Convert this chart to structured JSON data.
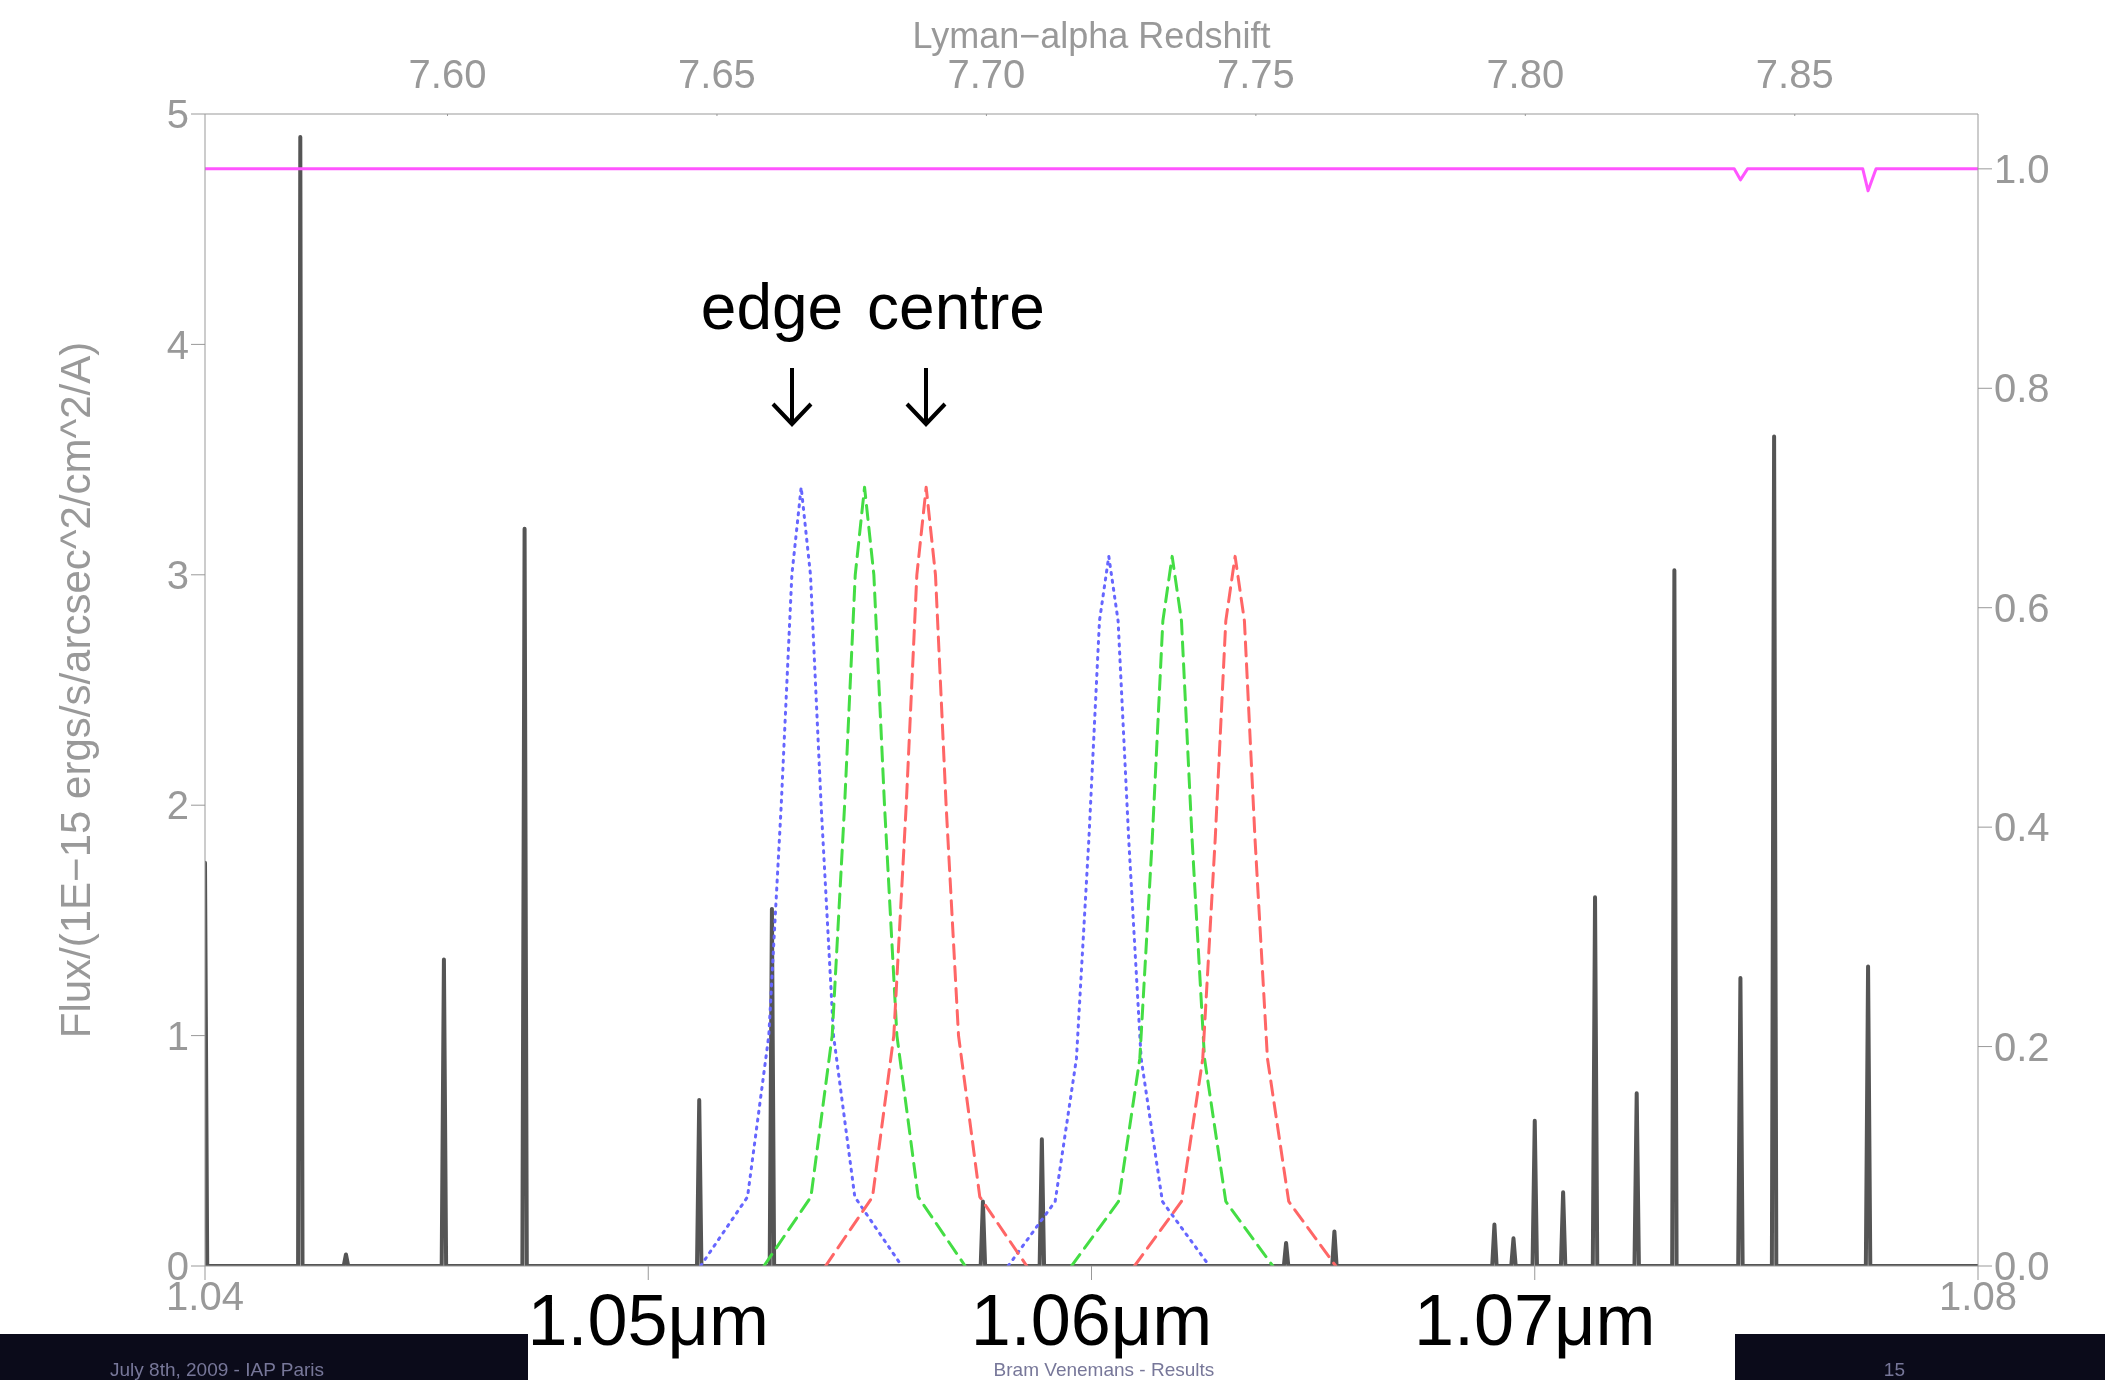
{
  "chart_data": {
    "type": "line",
    "xlabel": null,
    "x2label": "Lyman−alpha Redshift",
    "ylabel": "Flux/(1E−15 ergs/s/arcsec^2/cm^2/A)",
    "xlim": [
      1.04,
      1.08
    ],
    "xticks": [
      1.04,
      {
        "value": 1.05,
        "label": null
      },
      {
        "value": 1.06,
        "label": null
      },
      {
        "value": 1.07,
        "label": null
      },
      1.08
    ],
    "x2lim": [
      7.555,
      7.884
    ],
    "x2ticks": [
      {
        "value": 7.6,
        "label": "7.60"
      },
      {
        "value": 7.65,
        "label": "7.65"
      },
      {
        "value": 7.7,
        "label": "7.70"
      },
      {
        "value": 7.75,
        "label": "7.75"
      },
      {
        "value": 7.8,
        "label": "7.80"
      },
      {
        "value": 7.85,
        "label": "7.85"
      }
    ],
    "ylim": [
      0,
      5
    ],
    "yticks": [
      0,
      1,
      2,
      3,
      4,
      5
    ],
    "y2lim": [
      0,
      1.05
    ],
    "y2ticks": [
      {
        "value": 0,
        "label": "0.0"
      },
      {
        "value": 0.2,
        "label": "0.2"
      },
      {
        "value": 0.4,
        "label": "0.4"
      },
      {
        "value": 0.6,
        "label": "0.6"
      },
      {
        "value": 0.8,
        "label": "0.8"
      },
      {
        "value": 1,
        "label": "1.0"
      }
    ],
    "marker": "none",
    "series": [
      {
        "color": "#555555",
        "line_style": "solid",
        "x": [
          1.04,
          1.04005,
          1.0421,
          1.04215,
          1.0422,
          1.04313,
          1.04318,
          1.04323,
          1.04534,
          1.04539,
          1.04544,
          1.04716,
          1.04721,
          1.04726,
          1.0511,
          1.05115,
          1.0512,
          1.05274,
          1.05279,
          1.05284,
          1.0575,
          1.05755,
          1.0576,
          1.05883,
          1.05888,
          1.05893,
          1.06434,
          1.06439,
          1.06444,
          1.06543,
          1.06548,
          1.06553,
          1.06904,
          1.06909,
          1.06914,
          1.06947,
          1.06952,
          1.06957,
          1.06995,
          1.07,
          1.07005,
          1.07059,
          1.07064,
          1.07069,
          1.07131,
          1.07136,
          1.07141,
          1.07225,
          1.0723,
          1.07235,
          1.0731,
          1.07315,
          1.0732,
          1.07459,
          1.07464,
          1.07469,
          1.07535,
          1.0754,
          1.07545,
          1.07747,
          1.07752,
          1.07757,
          1.08
        ],
        "values": [
          1.75,
          0,
          0,
          4.9,
          0,
          0,
          0.05,
          0,
          0,
          1.33,
          0,
          0,
          3.2,
          0,
          0,
          0.72,
          0,
          0,
          1.55,
          0,
          0,
          0.28,
          0,
          0,
          0.55,
          0,
          0,
          0.1,
          0,
          0,
          0.15,
          0,
          0,
          0.18,
          0,
          0,
          0.12,
          0,
          0,
          0.63,
          0,
          0,
          0.32,
          0,
          0,
          1.6,
          0,
          0,
          0.75,
          0,
          0,
          3.02,
          0,
          0,
          1.25,
          0,
          0,
          3.6,
          0,
          0,
          1.3,
          0,
          0
        ]
      },
      {
        "color": "#ff55ff",
        "line_style": "solid",
        "axis": "y2",
        "x": [
          1.04,
          1.0745,
          1.07464,
          1.0748,
          1.0774,
          1.07752,
          1.0777,
          1.08
        ],
        "values": [
          1.0,
          1.0,
          0.99,
          1.0,
          1.0,
          0.98,
          1.0,
          1.0
        ]
      },
      {
        "color": "#6666ff",
        "line_style": "dotted",
        "x": [
          1.05118,
          1.05224,
          1.05272,
          1.053,
          1.05324,
          1.05345,
          1.05366,
          1.0539,
          1.05418,
          1.05466,
          1.05572,
          1.0569,
          1.05812,
          1.05918,
          1.05966,
          1.05994,
          1.06018,
          1.06039,
          1.0606,
          1.06084,
          1.06112,
          1.0616,
          1.06266
        ],
        "values": [
          0,
          0.3,
          1.0,
          2.0,
          3.0,
          3.38,
          3.0,
          2.0,
          1.0,
          0.3,
          0,
          null,
          0,
          0.28,
          0.9,
          1.85,
          2.8,
          3.08,
          2.8,
          1.85,
          0.9,
          0.28,
          0
        ]
      },
      {
        "color": "#44dd44",
        "line_style": "dashed",
        "x": [
          1.05261,
          1.05367,
          1.05415,
          1.05443,
          1.05467,
          1.05488,
          1.05509,
          1.05533,
          1.05561,
          1.05609,
          1.05715,
          1.0584,
          1.05955,
          1.06061,
          1.06109,
          1.06137,
          1.06161,
          1.06182,
          1.06203,
          1.06227,
          1.06255,
          1.06303,
          1.06409
        ],
        "values": [
          0,
          0.3,
          1.0,
          2.0,
          3.0,
          3.38,
          3.0,
          2.0,
          1.0,
          0.3,
          0,
          null,
          0,
          0.28,
          0.9,
          1.85,
          2.8,
          3.08,
          2.8,
          1.85,
          0.9,
          0.28,
          0
        ]
      },
      {
        "color": "#ff6666",
        "line_style": "dashed",
        "x": [
          1.054,
          1.05506,
          1.05554,
          1.05582,
          1.05606,
          1.05627,
          1.05648,
          1.05672,
          1.057,
          1.05748,
          1.05854,
          1.0598,
          1.06097,
          1.06203,
          1.06251,
          1.06279,
          1.06303,
          1.06324,
          1.06345,
          1.06369,
          1.06397,
          1.06445,
          1.06551
        ],
        "values": [
          0,
          0.3,
          1.0,
          2.0,
          3.0,
          3.38,
          3.0,
          2.0,
          1.0,
          0.3,
          0,
          null,
          0,
          0.28,
          0.9,
          1.85,
          2.8,
          3.08,
          2.8,
          1.85,
          0.9,
          0.28,
          0
        ]
      }
    ],
    "annotations": [
      "edge",
      "centre",
      {
        "text": "1.05μm",
        "x": 1.05,
        "y": 0
      },
      {
        "text": "1.06μm",
        "x": 1.06,
        "y": 0
      },
      {
        "text": "1.07μm",
        "x": 1.07,
        "y": 0
      },
      "July 8th, 2009 - IAP Paris",
      "Bram Venemans - Results",
      "15"
    ]
  }
}
